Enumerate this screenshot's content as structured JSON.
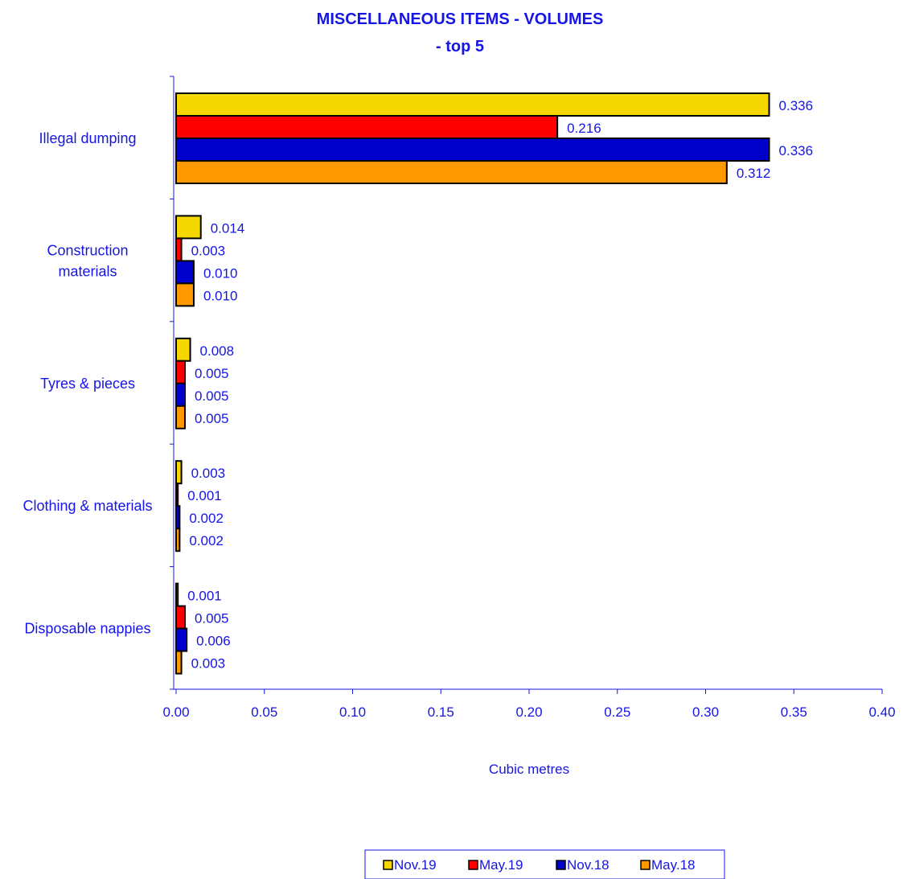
{
  "chart_data": {
    "type": "bar",
    "orientation": "horizontal",
    "title": "MISCELLANEOUS ITEMS - VOLUMES",
    "subtitle": "- top 5",
    "xlabel": "Cubic metres",
    "ylabel": "",
    "xlim": [
      0,
      0.4
    ],
    "x_ticks": [
      "0.00",
      "0.05",
      "0.10",
      "0.15",
      "0.20",
      "0.25",
      "0.30",
      "0.35",
      "0.40"
    ],
    "grid": false,
    "legend_position": "bottom",
    "categories": [
      [
        "Illegal dumping"
      ],
      [
        "Construction",
        "materials"
      ],
      [
        "Tyres & pieces"
      ],
      [
        "Clothing & materials"
      ],
      [
        "Disposable nappies"
      ]
    ],
    "series": [
      {
        "name": "Nov.19",
        "color": "#F5D800",
        "values": [
          0.336,
          0.014,
          0.008,
          0.003,
          0.001
        ]
      },
      {
        "name": "May.19",
        "color": "#FF0000",
        "values": [
          0.216,
          0.003,
          0.005,
          0.001,
          0.005
        ]
      },
      {
        "name": "Nov.18",
        "color": "#0000CC",
        "values": [
          0.336,
          0.01,
          0.005,
          0.002,
          0.006
        ]
      },
      {
        "name": "May.18",
        "color": "#FF9900",
        "values": [
          0.312,
          0.01,
          0.005,
          0.002,
          0.003
        ]
      }
    ],
    "label_color": "#1515E6",
    "axis_color": "#1515E6"
  }
}
